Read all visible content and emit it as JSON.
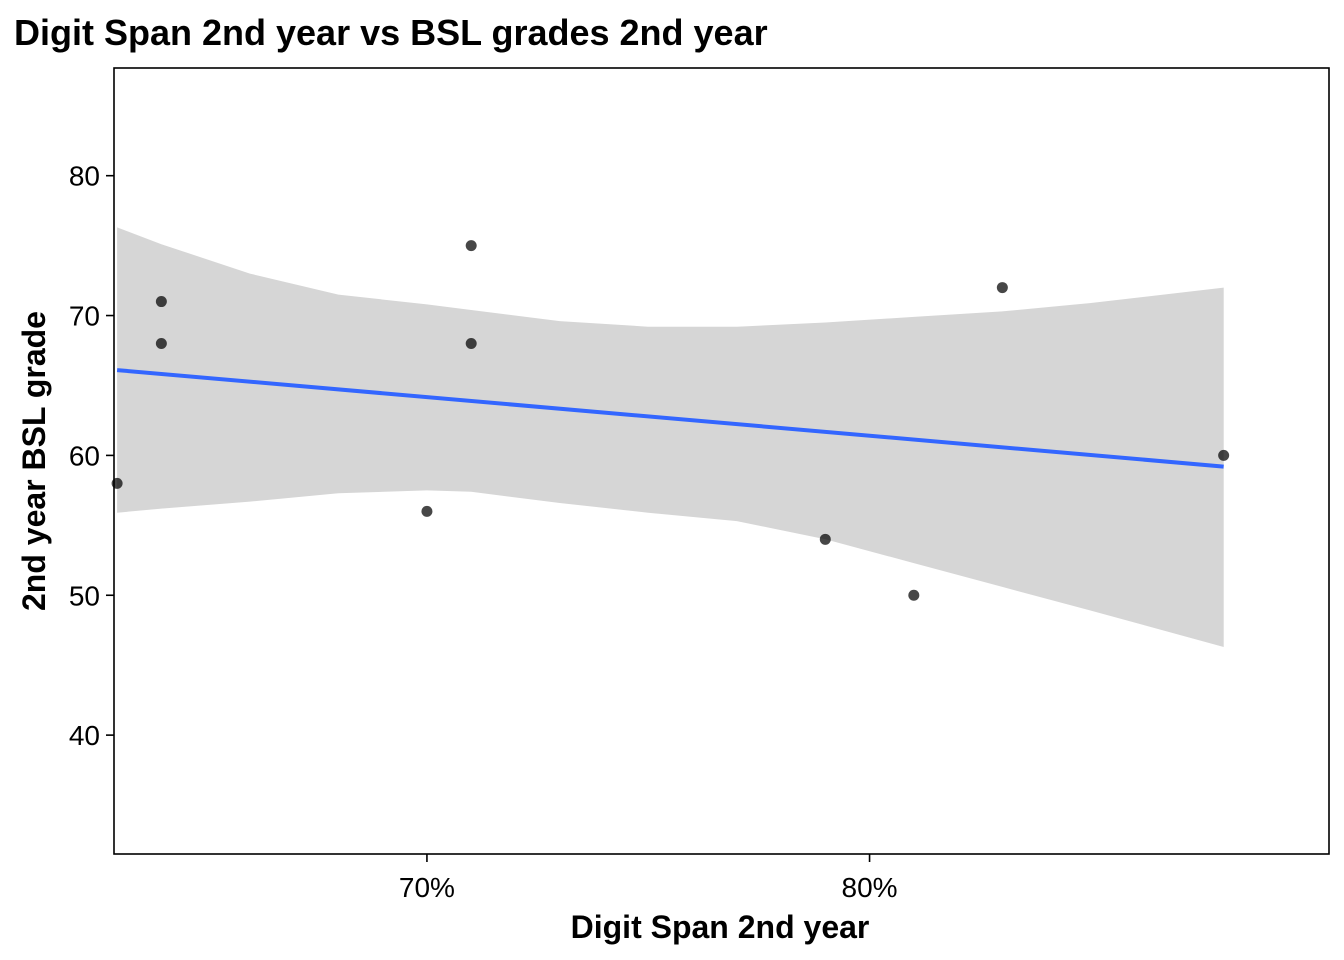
{
  "chart_data": {
    "type": "scatter",
    "title": "Digit Span 2nd year vs BSL grades 2nd year",
    "xlabel": "Digit Span 2nd year",
    "ylabel": "2nd year BSL grade",
    "xlim": [
      0.6293,
      0.9038
    ],
    "ylim": [
      31.5,
      87.7
    ],
    "x_ticks": [
      {
        "value": 0.7,
        "label": "70%"
      },
      {
        "value": 0.8,
        "label": "80%"
      }
    ],
    "y_ticks": [
      {
        "value": 40,
        "label": "40"
      },
      {
        "value": 50,
        "label": "50"
      },
      {
        "value": 60,
        "label": "60"
      },
      {
        "value": 70,
        "label": "70"
      },
      {
        "value": 80,
        "label": "80"
      }
    ],
    "grid": false,
    "points": [
      {
        "x": 0.63,
        "y": 58
      },
      {
        "x": 0.64,
        "y": 71
      },
      {
        "x": 0.64,
        "y": 68
      },
      {
        "x": 0.7,
        "y": 56
      },
      {
        "x": 0.71,
        "y": 75
      },
      {
        "x": 0.71,
        "y": 68
      },
      {
        "x": 0.79,
        "y": 54
      },
      {
        "x": 0.81,
        "y": 50
      },
      {
        "x": 0.83,
        "y": 72
      },
      {
        "x": 0.88,
        "y": 60
      }
    ],
    "trend_line": {
      "method": "linear",
      "color": "#3366ff",
      "x": [
        0.63,
        0.88
      ],
      "y": [
        66.1,
        59.2
      ]
    },
    "confidence_band": {
      "color": "#d6d6d6",
      "x": [
        0.63,
        0.64,
        0.66,
        0.68,
        0.7,
        0.71,
        0.73,
        0.75,
        0.77,
        0.79,
        0.81,
        0.83,
        0.85,
        0.88
      ],
      "upper": [
        76.3,
        75.1,
        73.0,
        71.5,
        70.8,
        70.4,
        69.6,
        69.2,
        69.2,
        69.5,
        69.9,
        70.3,
        70.9,
        72.0
      ],
      "lower": [
        55.9,
        56.2,
        56.7,
        57.3,
        57.5,
        57.4,
        56.6,
        55.9,
        55.3,
        54.0,
        52.3,
        50.6,
        48.9,
        46.3
      ]
    },
    "colors": {
      "point": "#000000",
      "axis": "#000000",
      "background": "#ffffff"
    }
  }
}
